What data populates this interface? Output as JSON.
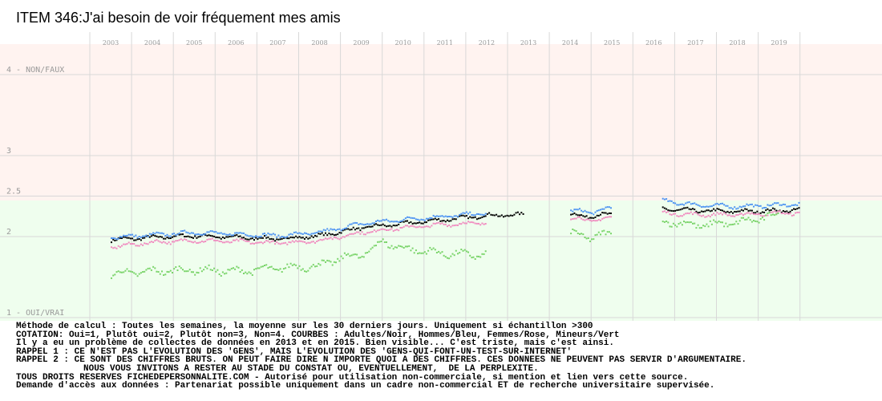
{
  "title": "ITEM 346:J'ai besoin de voir fréquement mes amis",
  "colors": {
    "zone_high": "#fff3f0",
    "zone_low": "#effeee",
    "grid": "#d8d8d8",
    "adultes": "#000000",
    "hommes": "#4f94f2",
    "femmes": "#f08cc0",
    "mineurs": "#7ad46a"
  },
  "chart_data": {
    "type": "scatter",
    "x_labels": [
      "2003",
      "2004",
      "2005",
      "2006",
      "2007",
      "2008",
      "2009",
      "2010",
      "2011",
      "2012",
      "2013",
      "2014",
      "2015",
      "2016",
      "2017",
      "2018",
      "2019"
    ],
    "y_ticks": [
      {
        "value": 4,
        "label": "4 - NON/FAUX"
      },
      {
        "value": 3,
        "label": "3"
      },
      {
        "value": 2.5,
        "label": "2.5"
      },
      {
        "value": 2,
        "label": "2"
      },
      {
        "value": 1,
        "label": "1 - OUI/VRAI"
      }
    ],
    "ylim": [
      1,
      4
    ],
    "series": [
      {
        "name": "Adultes",
        "color": "#000000",
        "segments": [
          {
            "x": [
              2003.0,
              2004.0,
              2005.0,
              2006.0,
              2007.0,
              2008.0,
              2009.0,
              2010.0,
              2011.0,
              2012.0,
              2012.9
            ],
            "y": [
              1.97,
              2.0,
              2.02,
              2.0,
              1.98,
              2.02,
              2.12,
              2.17,
              2.22,
              2.27,
              2.28
            ]
          },
          {
            "x": [
              2014.0,
              2014.5,
              2015.0
            ],
            "y": [
              2.28,
              2.26,
              2.29
            ]
          },
          {
            "x": [
              2016.2,
              2017.0,
              2018.0,
              2019.0,
              2019.5
            ],
            "y": [
              2.35,
              2.33,
              2.32,
              2.33,
              2.34
            ]
          }
        ]
      },
      {
        "name": "Hommes",
        "color": "#4f94f2",
        "segments": [
          {
            "x": [
              2003.0,
              2004.0,
              2005.0,
              2006.0,
              2007.0,
              2008.0,
              2009.0,
              2010.0,
              2011.0,
              2012.0
            ],
            "y": [
              2.0,
              2.03,
              2.06,
              2.04,
              2.02,
              2.06,
              2.17,
              2.22,
              2.26,
              2.3
            ]
          },
          {
            "x": [
              2014.0,
              2014.5,
              2015.0
            ],
            "y": [
              2.33,
              2.31,
              2.37
            ]
          },
          {
            "x": [
              2016.2,
              2017.0,
              2018.0,
              2019.0,
              2019.5
            ],
            "y": [
              2.45,
              2.4,
              2.38,
              2.4,
              2.41
            ]
          }
        ]
      },
      {
        "name": "Femmes",
        "color": "#f08cc0",
        "segments": [
          {
            "x": [
              2003.0,
              2004.0,
              2005.0,
              2006.0,
              2007.0,
              2008.0,
              2009.0,
              2010.0,
              2011.0,
              2012.0
            ],
            "y": [
              1.88,
              1.94,
              1.96,
              1.95,
              1.93,
              1.96,
              2.06,
              2.12,
              2.16,
              2.18
            ]
          },
          {
            "x": [
              2014.0,
              2014.5,
              2015.0
            ],
            "y": [
              2.24,
              2.21,
              2.24
            ]
          },
          {
            "x": [
              2016.2,
              2017.0,
              2018.0,
              2019.0,
              2019.5
            ],
            "y": [
              2.3,
              2.28,
              2.28,
              2.3,
              2.3
            ]
          }
        ]
      },
      {
        "name": "Mineurs",
        "color": "#7ad46a",
        "segments": [
          {
            "x": [
              2003.0,
              2004.0,
              2005.0,
              2006.0,
              2007.0,
              2008.0,
              2008.5,
              2009.0,
              2009.5,
              2010.0,
              2011.0,
              2012.0
            ],
            "y": [
              1.55,
              1.58,
              1.6,
              1.58,
              1.62,
              1.65,
              1.75,
              1.78,
              1.95,
              1.86,
              1.8,
              1.78
            ]
          },
          {
            "x": [
              2014.0,
              2014.5,
              2015.0
            ],
            "y": [
              2.05,
              2.0,
              2.05
            ]
          },
          {
            "x": [
              2016.2,
              2017.0,
              2018.0,
              2019.0
            ],
            "y": [
              2.2,
              2.15,
              2.18,
              2.28
            ]
          }
        ]
      }
    ]
  },
  "notes": [
    "Méthode de calcul : Toutes les semaines, la moyenne sur les 30 derniers jours. Uniquement si échantillon >300",
    "COTATION: Oui=1, Plutôt oui=2, Plutôt non=3, Non=4. COURBES : Adultes/Noir, Hommes/Bleu, Femmes/Rose, Mineurs/Vert",
    "Il y a eu un problème de collectes de données en 2013 et en 2015. Bien visible... C'est triste, mais c'est ainsi.",
    "RAPPEL 1 : CE N'EST PAS L'EVOLUTION DES 'GENS', MAIS L'EVOLUTION DES 'GENS-QUI-FONT-UN-TEST-SUR-INTERNET'",
    "RAPPEL 2 : CE SONT DES CHIFFRES BRUTS. ON PEUT FAIRE DIRE N IMPORTE QUOI A DES CHIFFRES. CES DONNEES NE PEUVENT PAS SERVIR D'ARGUMENTAIRE.",
    "NOUS VOUS INVITONS A RESTER AU STADE DU CONSTAT OU, EVENTUELLEMENT,  DE LA PERPLEXITE.",
    "TOUS DROITS RESERVES FICHEDEPERSONNALITE.COM - Autorisé pour utilisation non-commerciale, si mention et lien vers cette source.",
    "Demande d'accès aux données : Partenariat possible uniquement dans un cadre non-commercial ET de recherche universitaire supervisée."
  ]
}
